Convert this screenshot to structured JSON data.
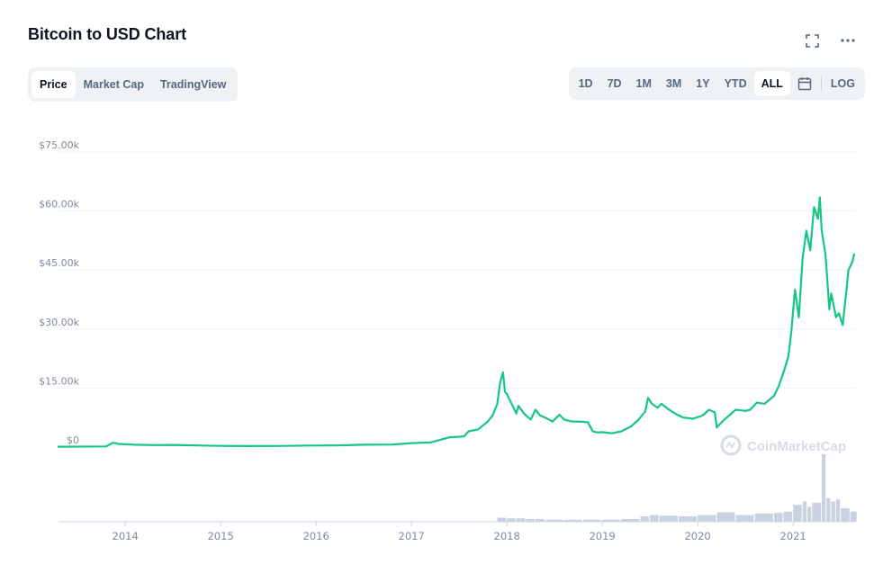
{
  "header": {
    "title": "Bitcoin to USD Chart"
  },
  "icons": {
    "fullscreen": "fullscreen-icon",
    "more": "more-options-icon",
    "calendar": "calendar-icon",
    "watermark_logo": "coinmarketcap-logo-icon"
  },
  "tabs": [
    {
      "label": "Price",
      "active": true
    },
    {
      "label": "Market Cap",
      "active": false
    },
    {
      "label": "TradingView",
      "active": false
    }
  ],
  "ranges": [
    {
      "label": "1D",
      "active": false
    },
    {
      "label": "7D",
      "active": false
    },
    {
      "label": "1M",
      "active": false
    },
    {
      "label": "3M",
      "active": false
    },
    {
      "label": "1Y",
      "active": false
    },
    {
      "label": "YTD",
      "active": false
    },
    {
      "label": "ALL",
      "active": true
    }
  ],
  "log_label": "LOG",
  "watermark": "CoinMarketCap",
  "colors": {
    "line": "#16c784",
    "volume": "#b8c2d8",
    "grid": "#eff2f5",
    "axis_text": "#808a9d"
  },
  "chart_data": {
    "type": "line",
    "title": "",
    "xlabel": "",
    "ylabel": "",
    "ylim": [
      0,
      75000
    ],
    "xlim": [
      2013.3,
      2021.65
    ],
    "y_ticks": [
      0,
      15000,
      30000,
      45000,
      60000,
      75000
    ],
    "y_tick_labels": [
      "$0",
      "$15.00k",
      "$30.00k",
      "$45.00k",
      "$60.00k",
      "$75.00k"
    ],
    "x_ticks": [
      2014,
      2015,
      2016,
      2017,
      2018,
      2019,
      2020,
      2021
    ],
    "x_tick_labels": [
      "2014",
      "2015",
      "2016",
      "2017",
      "2018",
      "2019",
      "2020",
      "2021"
    ],
    "grid": true,
    "series": [
      {
        "values_x": [
          2013.3,
          2013.8,
          2013.87,
          2013.93,
          2014.0,
          2014.1,
          2014.3,
          2014.5,
          2014.8,
          2015.0,
          2015.3,
          2015.6,
          2015.9,
          2016.2,
          2016.5,
          2016.8,
          2017.0,
          2017.2,
          2017.4,
          2017.55,
          2017.6,
          2017.7,
          2017.8,
          2017.85,
          2017.9,
          2017.93,
          2017.96,
          2017.98,
          2018.0,
          2018.05,
          2018.1,
          2018.12,
          2018.18,
          2018.25,
          2018.3,
          2018.35,
          2018.4,
          2018.48,
          2018.55,
          2018.6,
          2018.68,
          2018.75,
          2018.85,
          2018.9,
          2018.95,
          2019.0,
          2019.1,
          2019.2,
          2019.3,
          2019.38,
          2019.45,
          2019.48,
          2019.52,
          2019.58,
          2019.62,
          2019.7,
          2019.78,
          2019.85,
          2019.95,
          2020.05,
          2020.12,
          2020.18,
          2020.2,
          2020.28,
          2020.4,
          2020.5,
          2020.55,
          2020.62,
          2020.7,
          2020.8,
          2020.85,
          2020.9,
          2020.95,
          2020.98,
          2021.02,
          2021.06,
          2021.1,
          2021.14,
          2021.18,
          2021.22,
          2021.26,
          2021.28,
          2021.3,
          2021.34,
          2021.38,
          2021.4,
          2021.45,
          2021.48,
          2021.52,
          2021.56,
          2021.58,
          2021.62,
          2021.64
        ],
        "values_y": [
          100,
          150,
          1100,
          800,
          700,
          600,
          500,
          550,
          400,
          300,
          250,
          280,
          400,
          420,
          600,
          650,
          1000,
          1200,
          2500,
          2700,
          4000,
          4500,
          6500,
          8000,
          11000,
          16500,
          19000,
          14000,
          13500,
          11000,
          8500,
          10500,
          8500,
          7000,
          9500,
          8000,
          7500,
          6500,
          8200,
          7000,
          6500,
          6500,
          6300,
          4000,
          3700,
          3800,
          3500,
          4000,
          5200,
          7000,
          9000,
          12500,
          11000,
          10000,
          11000,
          9500,
          8300,
          7500,
          7200,
          8000,
          9500,
          8800,
          5000,
          7000,
          9500,
          9200,
          9500,
          11300,
          11000,
          13000,
          15500,
          19000,
          23000,
          29000,
          40000,
          33000,
          48000,
          55000,
          50000,
          61000,
          58000,
          63500,
          55000,
          49000,
          35000,
          39000,
          33000,
          34000,
          31000,
          40000,
          45000,
          47000,
          49000
        ]
      }
    ],
    "volume": {
      "x": [
        2017.9,
        2018.0,
        2018.1,
        2018.2,
        2018.3,
        2018.4,
        2018.6,
        2018.8,
        2019.0,
        2019.2,
        2019.4,
        2019.5,
        2019.6,
        2019.8,
        2020.0,
        2020.2,
        2020.4,
        2020.6,
        2020.8,
        2020.9,
        2021.0,
        2021.1,
        2021.15,
        2021.2,
        2021.3,
        2021.35,
        2021.4,
        2021.45,
        2021.5,
        2021.6
      ],
      "values": [
        0.06,
        0.05,
        0.05,
        0.04,
        0.04,
        0.03,
        0.03,
        0.03,
        0.03,
        0.04,
        0.08,
        0.1,
        0.09,
        0.08,
        0.1,
        0.14,
        0.1,
        0.12,
        0.13,
        0.15,
        0.25,
        0.3,
        0.22,
        0.28,
        1.0,
        0.35,
        0.3,
        0.33,
        0.2,
        0.15
      ]
    }
  }
}
